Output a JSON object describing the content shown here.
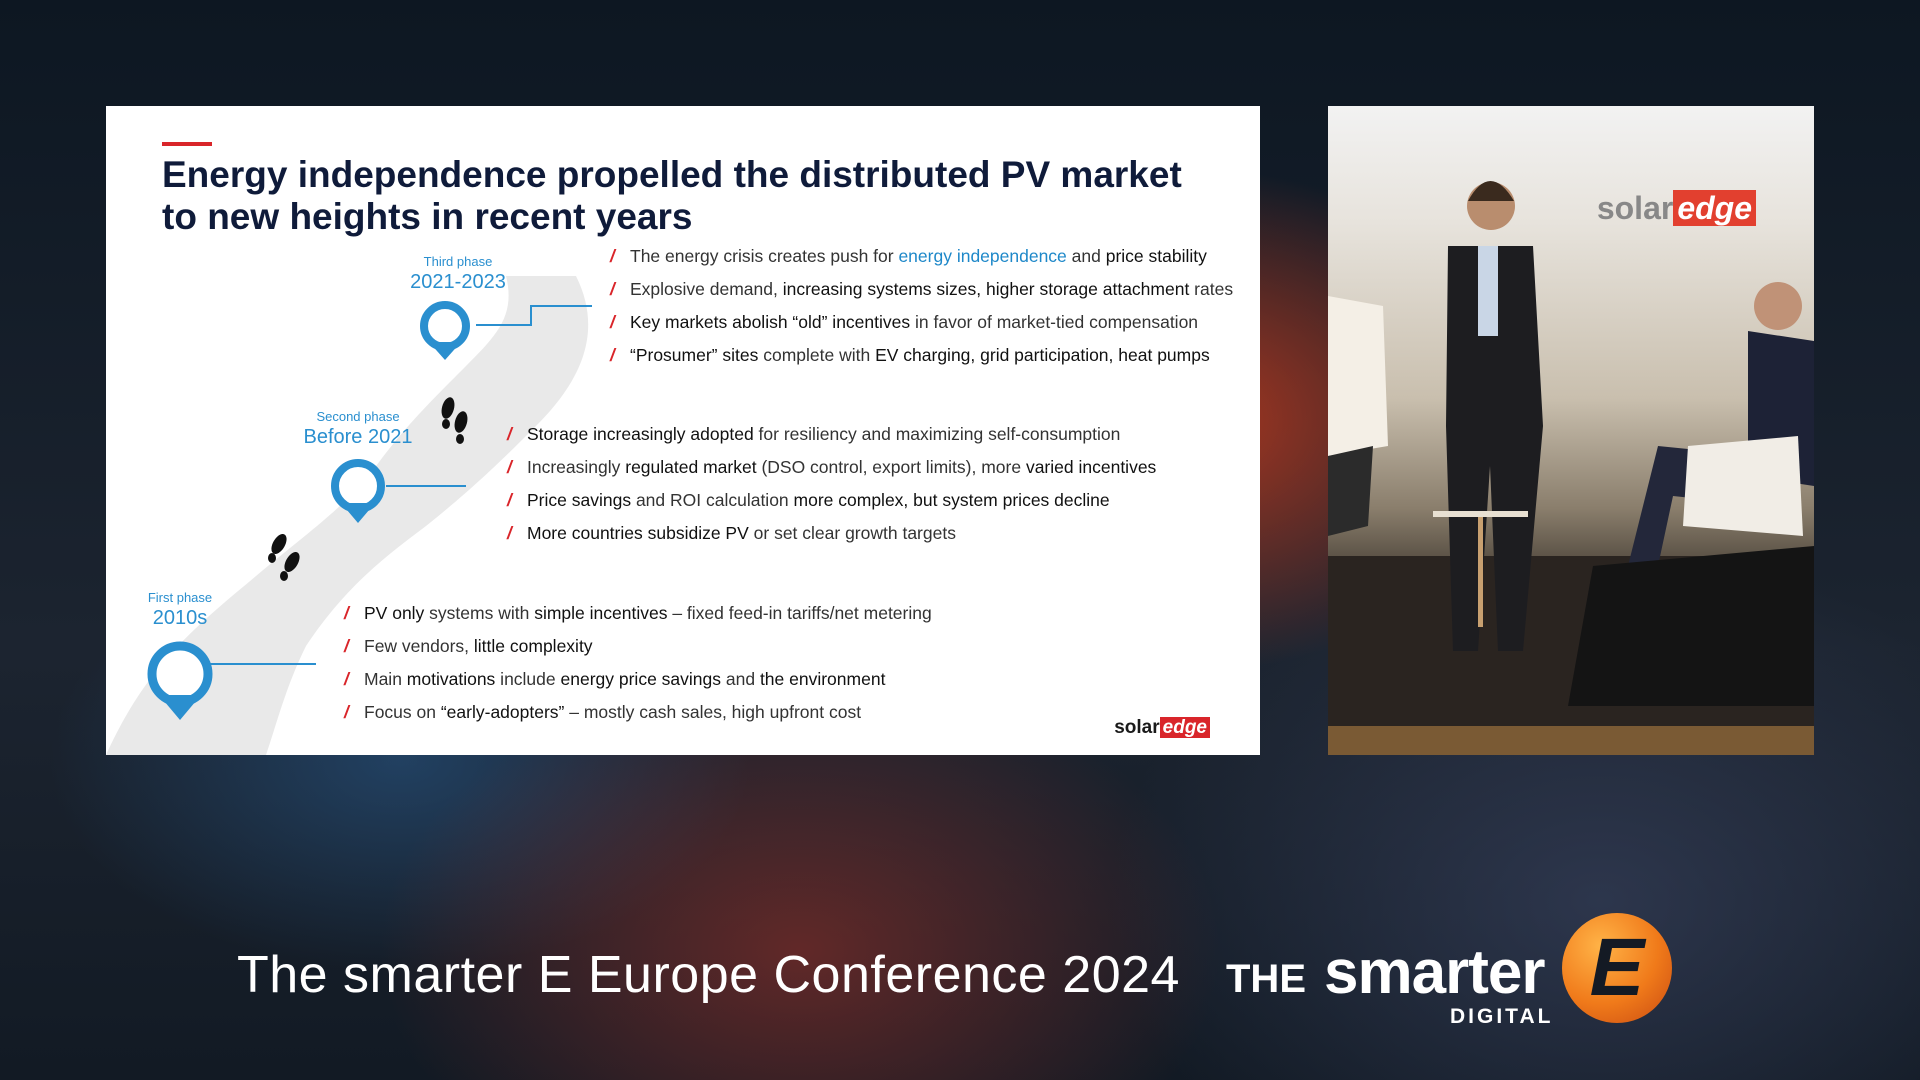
{
  "slide": {
    "title_line1": "Energy independence propelled the distributed PV market",
    "title_line2": "to new heights in recent years",
    "phases": [
      {
        "small": "Third phase",
        "big": "2021-2023"
      },
      {
        "small": "Second phase",
        "big": "Before 2021"
      },
      {
        "small": "First phase",
        "big": "2010s"
      }
    ],
    "third_bullets": [
      [
        {
          "t": "The energy crisis creates push for ",
          "s": "n"
        },
        {
          "t": "energy independence",
          "s": "hl"
        },
        {
          "t": " and ",
          "s": "n"
        },
        {
          "t": "price stability",
          "s": "b"
        }
      ],
      [
        {
          "t": "Explosive demand, ",
          "s": "n"
        },
        {
          "t": "increasing systems sizes, higher storage attachment",
          "s": "b"
        },
        {
          "t": " rates",
          "s": "n"
        }
      ],
      [
        {
          "t": "Key markets abolish “old” incentives",
          "s": "b"
        },
        {
          "t": " in favor of market-tied compensation",
          "s": "n"
        }
      ],
      [
        {
          "t": "“Prosumer” sites",
          "s": "b"
        },
        {
          "t": " complete with ",
          "s": "n"
        },
        {
          "t": "EV charging, grid participation, heat pumps",
          "s": "b"
        }
      ]
    ],
    "second_bullets": [
      [
        {
          "t": "Storage increasingly adopted",
          "s": "b"
        },
        {
          "t": " for resiliency and maximizing self-consumption",
          "s": "n"
        }
      ],
      [
        {
          "t": "Increasingly ",
          "s": "n"
        },
        {
          "t": "regulated market",
          "s": "b"
        },
        {
          "t": " (DSO control, export limits), more ",
          "s": "n"
        },
        {
          "t": "varied incentives",
          "s": "b"
        }
      ],
      [
        {
          "t": "Price savings",
          "s": "b"
        },
        {
          "t": " and ROI calculation ",
          "s": "n"
        },
        {
          "t": "more complex, but system prices decline",
          "s": "b"
        }
      ],
      [
        {
          "t": "More countries subsidize PV",
          "s": "b"
        },
        {
          "t": " or set clear growth targets",
          "s": "n"
        }
      ]
    ],
    "first_bullets": [
      [
        {
          "t": "PV only",
          "s": "b"
        },
        {
          "t": " systems with ",
          "s": "n"
        },
        {
          "t": "simple incentives",
          "s": "b"
        },
        {
          "t": " – fixed feed-in tariffs/net metering",
          "s": "n"
        }
      ],
      [
        {
          "t": "Few vendors, ",
          "s": "n"
        },
        {
          "t": "little complexity",
          "s": "b"
        }
      ],
      [
        {
          "t": "Main ",
          "s": "n"
        },
        {
          "t": "motivations",
          "s": "b"
        },
        {
          "t": " include ",
          "s": "n"
        },
        {
          "t": "energy price savings",
          "s": "b"
        },
        {
          "t": " and ",
          "s": "n"
        },
        {
          "t": "the environment",
          "s": "b"
        }
      ],
      [
        {
          "t": "Focus on ",
          "s": "n"
        },
        {
          "t": "“early-adopters”",
          "s": "b"
        },
        {
          "t": " – mostly cash sales, high upfront cost",
          "s": "n"
        }
      ]
    ],
    "bullet_mark": "/",
    "logo_left": "solar",
    "logo_right": "edge"
  },
  "camera": {
    "logo_left": "solar",
    "logo_right": "edge"
  },
  "caption": "The smarter E Europe Conference 2024",
  "brand": {
    "the": "THE",
    "smarter": "smarter",
    "digital": "DIGITAL",
    "e": "E"
  },
  "colors": {
    "accent_red": "#d9252a",
    "phase_blue": "#2a8fcf",
    "title_navy": "#0f1b3a",
    "brand_orange": "#f07a1a"
  },
  "icons": [
    "location-pin-icon",
    "footprints-icon"
  ]
}
